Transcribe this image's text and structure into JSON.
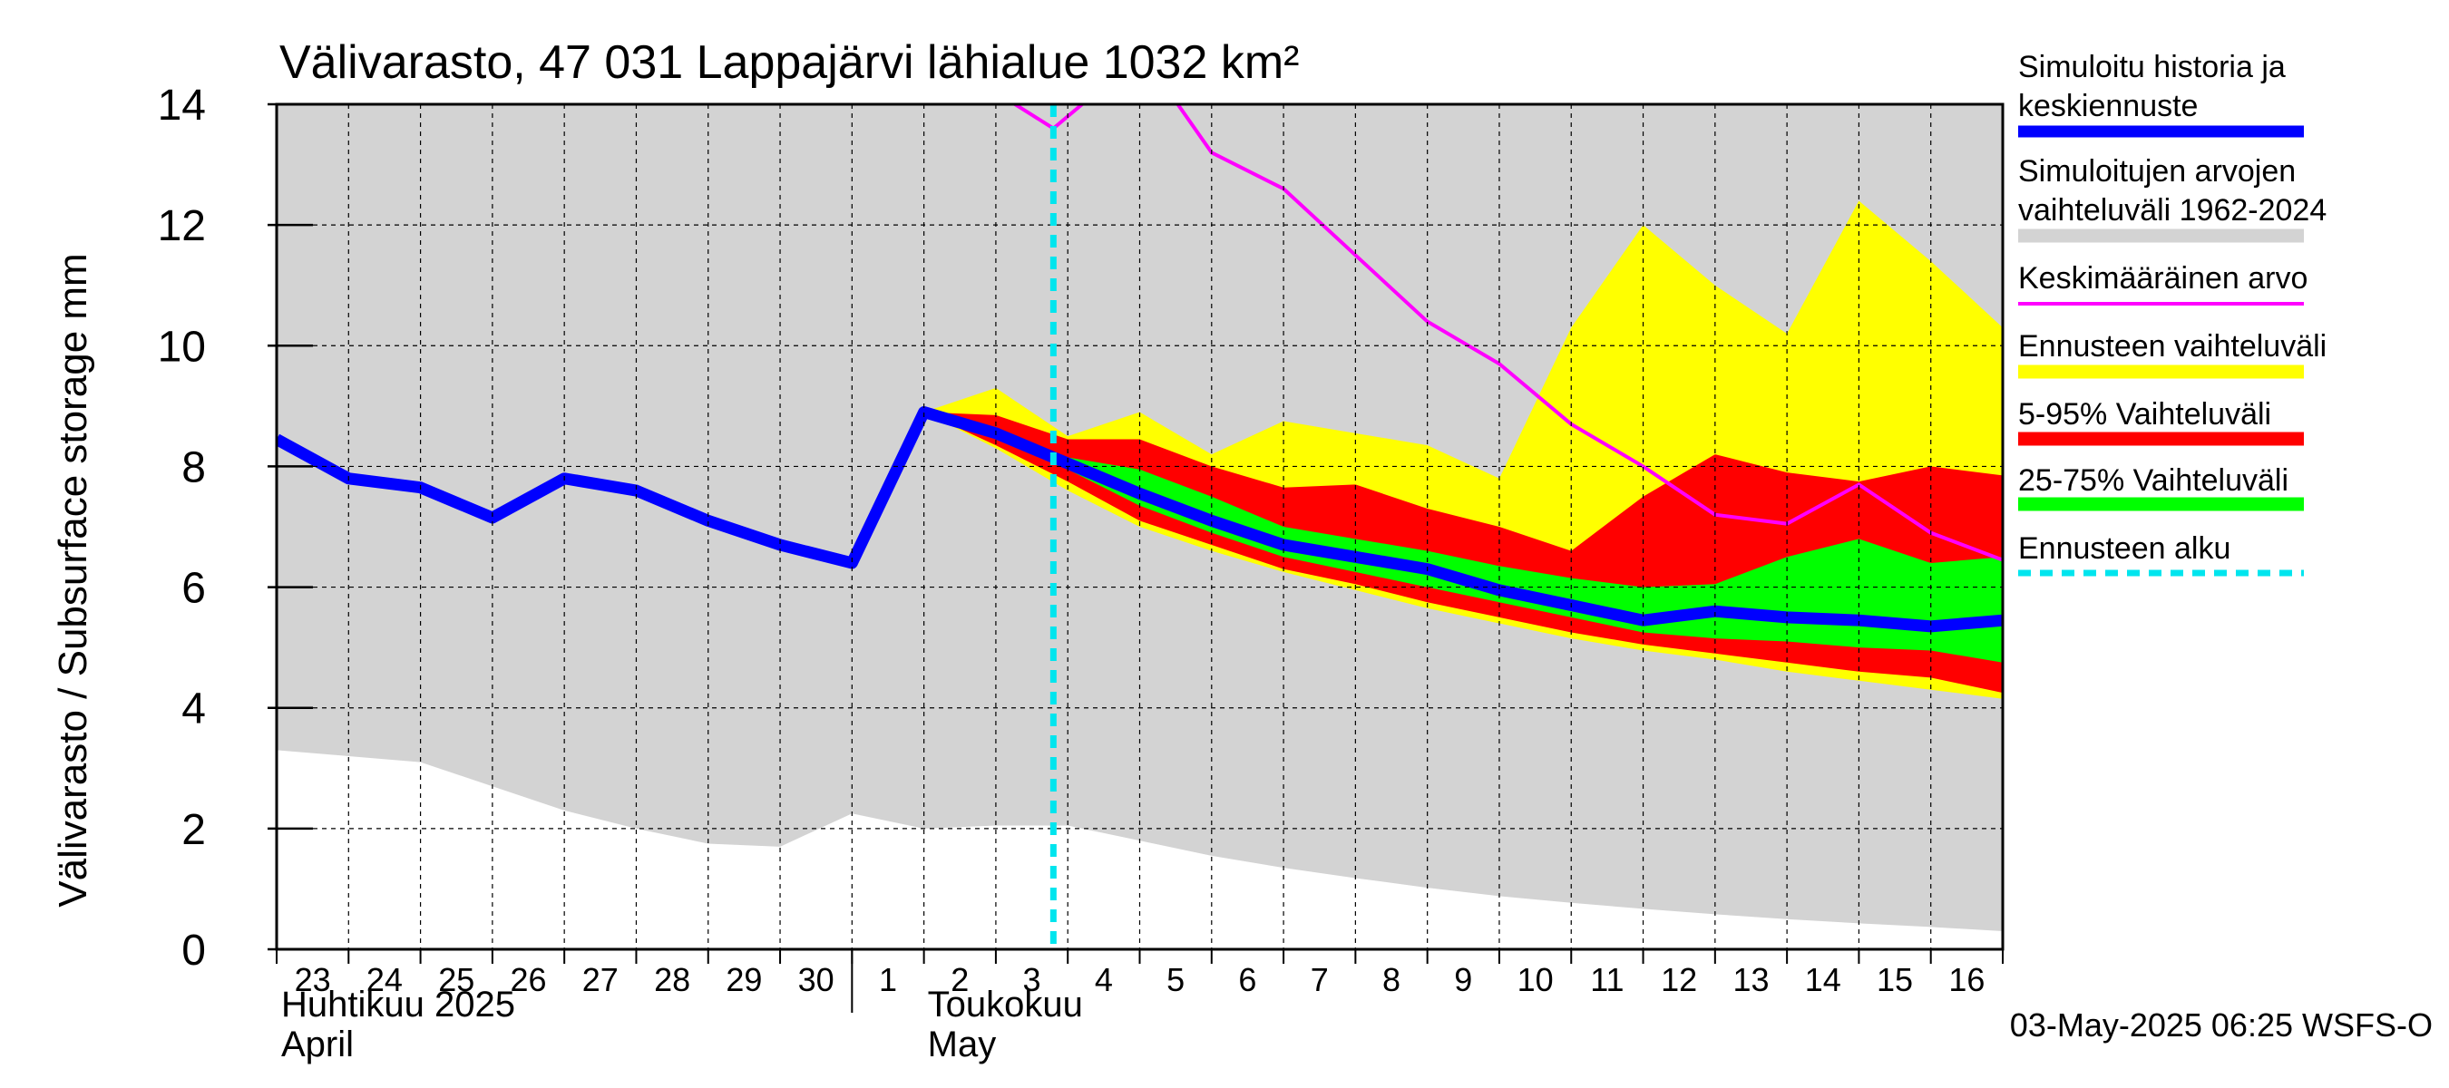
{
  "chart_data": {
    "type": "area",
    "title": "Välivarasto, 47 031 Lappajärvi lähialue 1032 km²",
    "ylabel": "Välivarasto / Subsurface storage  mm",
    "ylim": [
      0,
      14
    ],
    "yticks": [
      "0",
      "2",
      "4",
      "6",
      "8",
      "10",
      "12",
      "14"
    ],
    "grid": true,
    "legend_position": "right",
    "x_labels": [
      "23",
      "24",
      "25",
      "26",
      "27",
      "28",
      "29",
      "30",
      "1",
      "2",
      "3",
      "4",
      "5",
      "6",
      "7",
      "8",
      "9",
      "10",
      "11",
      "12",
      "13",
      "14",
      "15",
      "16"
    ],
    "month_labels": [
      {
        "line1": "Huhtikuu  2025",
        "line2": "April"
      },
      {
        "line1": "Toukokuu",
        "line2": "May"
      }
    ],
    "forecast_start_x": 10.8,
    "historical_range": {
      "x": [
        0,
        1,
        2,
        3,
        4,
        5,
        6,
        7,
        8,
        9,
        10,
        11,
        12,
        13,
        14,
        15,
        16,
        17,
        18,
        19,
        20,
        21,
        22,
        23,
        24
      ],
      "lower": [
        3.3,
        3.2,
        3.1,
        2.7,
        2.3,
        2.0,
        1.75,
        1.7,
        2.25,
        2.0,
        2.05,
        2.05,
        1.8,
        1.55,
        1.35,
        1.18,
        1.02,
        0.88,
        0.77,
        0.67,
        0.58,
        0.5,
        0.43,
        0.37,
        0.3
      ],
      "upper": [
        14,
        14,
        14,
        14,
        14,
        14,
        14,
        14,
        14,
        14,
        14,
        14,
        14,
        14,
        14,
        14,
        14,
        14,
        14,
        14,
        14,
        14,
        14,
        14,
        14
      ]
    },
    "forecast_x": [
      9,
      10,
      11,
      12,
      13,
      14,
      15,
      16,
      17,
      18,
      19,
      20,
      21,
      22,
      23,
      24
    ],
    "forecast_range": {
      "lower": [
        8.9,
        8.3,
        7.6,
        7.0,
        6.6,
        6.25,
        5.95,
        5.65,
        5.4,
        5.15,
        4.95,
        4.8,
        4.6,
        4.45,
        4.3,
        4.15
      ],
      "upper": [
        8.9,
        9.3,
        8.5,
        8.9,
        8.2,
        8.75,
        8.55,
        8.35,
        7.8,
        10.3,
        12.0,
        11.0,
        10.2,
        12.4,
        11.4,
        10.3
      ]
    },
    "range_5_95": {
      "lower": [
        8.9,
        8.35,
        7.75,
        7.1,
        6.7,
        6.3,
        6.05,
        5.75,
        5.5,
        5.25,
        5.05,
        4.9,
        4.75,
        4.6,
        4.5,
        4.25
      ],
      "upper": [
        8.9,
        8.85,
        8.45,
        8.45,
        8.0,
        7.65,
        7.7,
        7.3,
        7.0,
        6.6,
        7.5,
        8.2,
        7.9,
        7.75,
        8.0,
        7.85
      ]
    },
    "range_25_75": {
      "lower": [
        8.9,
        8.45,
        7.95,
        7.35,
        6.9,
        6.5,
        6.25,
        6.0,
        5.75,
        5.5,
        5.25,
        5.15,
        5.1,
        5.0,
        4.95,
        4.75
      ],
      "upper": [
        8.9,
        8.65,
        8.15,
        7.95,
        7.5,
        7.0,
        6.8,
        6.6,
        6.35,
        6.15,
        6.0,
        6.05,
        6.5,
        6.8,
        6.4,
        6.5
      ]
    },
    "series": [
      {
        "name": "Simuloitu historia ja keskiennuste",
        "x": [
          0,
          1,
          2,
          3,
          4,
          5,
          6,
          7,
          8,
          9,
          10,
          11,
          12,
          13,
          14,
          15,
          16,
          17,
          18,
          19,
          20,
          21,
          22,
          23,
          24
        ],
        "values": [
          8.45,
          7.8,
          7.65,
          7.15,
          7.8,
          7.6,
          7.1,
          6.7,
          6.4,
          8.9,
          8.55,
          8.05,
          7.55,
          7.1,
          6.7,
          6.5,
          6.3,
          5.95,
          5.7,
          5.45,
          5.6,
          5.5,
          5.45,
          5.35,
          5.45
        ]
      },
      {
        "name": "Keskimääräinen arvo",
        "x": [
          10,
          10.8,
          11.2,
          12,
          13,
          14,
          15,
          16,
          17,
          18,
          19,
          20,
          21,
          22,
          23,
          24
        ],
        "values": [
          14.2,
          13.6,
          14.0,
          14.9,
          13.2,
          12.6,
          11.5,
          10.4,
          9.7,
          8.7,
          8.0,
          7.2,
          7.05,
          7.7,
          6.9,
          6.45
        ]
      }
    ]
  },
  "legend": [
    {
      "label_line1": "Simuloitu historia ja",
      "label_line2": "keskiennuste",
      "color": "#0000ff",
      "style": "thick"
    },
    {
      "label_line1": "Simuloitujen arvojen",
      "label_line2": "vaihteluväli 1962-2024",
      "color": "#d3d3d3",
      "style": "band"
    },
    {
      "label_line1": "Keskimääräinen arvo",
      "label_line2": "",
      "color": "#ff00ff",
      "style": "thin"
    },
    {
      "label_line1": "Ennusteen vaihteluväli",
      "label_line2": "",
      "color": "#ffff00",
      "style": "band"
    },
    {
      "label_line1": "5-95% Vaihteluväli",
      "label_line2": "",
      "color": "#ff0000",
      "style": "band"
    },
    {
      "label_line1": "25-75% Vaihteluväli",
      "label_line2": "",
      "color": "#00ff00",
      "style": "band"
    },
    {
      "label_line1": "Ennusteen alku",
      "label_line2": "",
      "color": "#00e5ee",
      "style": "dashed"
    }
  ],
  "footer": "03-May-2025 06:25 WSFS-O",
  "colors": {
    "history_band": "#d3d3d3",
    "forecast_range": "#ffff00",
    "range_5_95": "#ff0000",
    "range_25_75": "#00ff00",
    "median": "#0000ff",
    "mean": "#ff00ff",
    "forecast_start": "#00e5ee"
  }
}
